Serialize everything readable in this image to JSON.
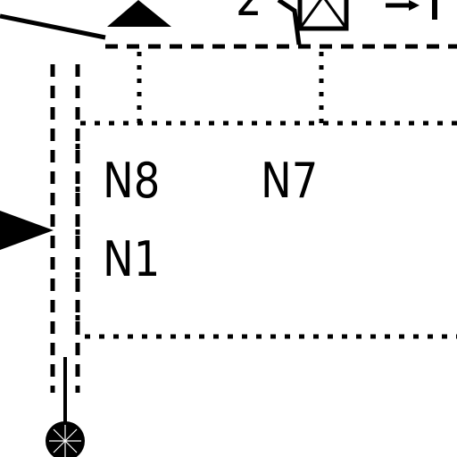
{
  "diagram": {
    "labels": {
      "n8": "N8",
      "n7": "N7",
      "n1": "N1",
      "top_digit": "2"
    },
    "colors": {
      "ink": "#000000",
      "background": "#ffffff"
    }
  }
}
